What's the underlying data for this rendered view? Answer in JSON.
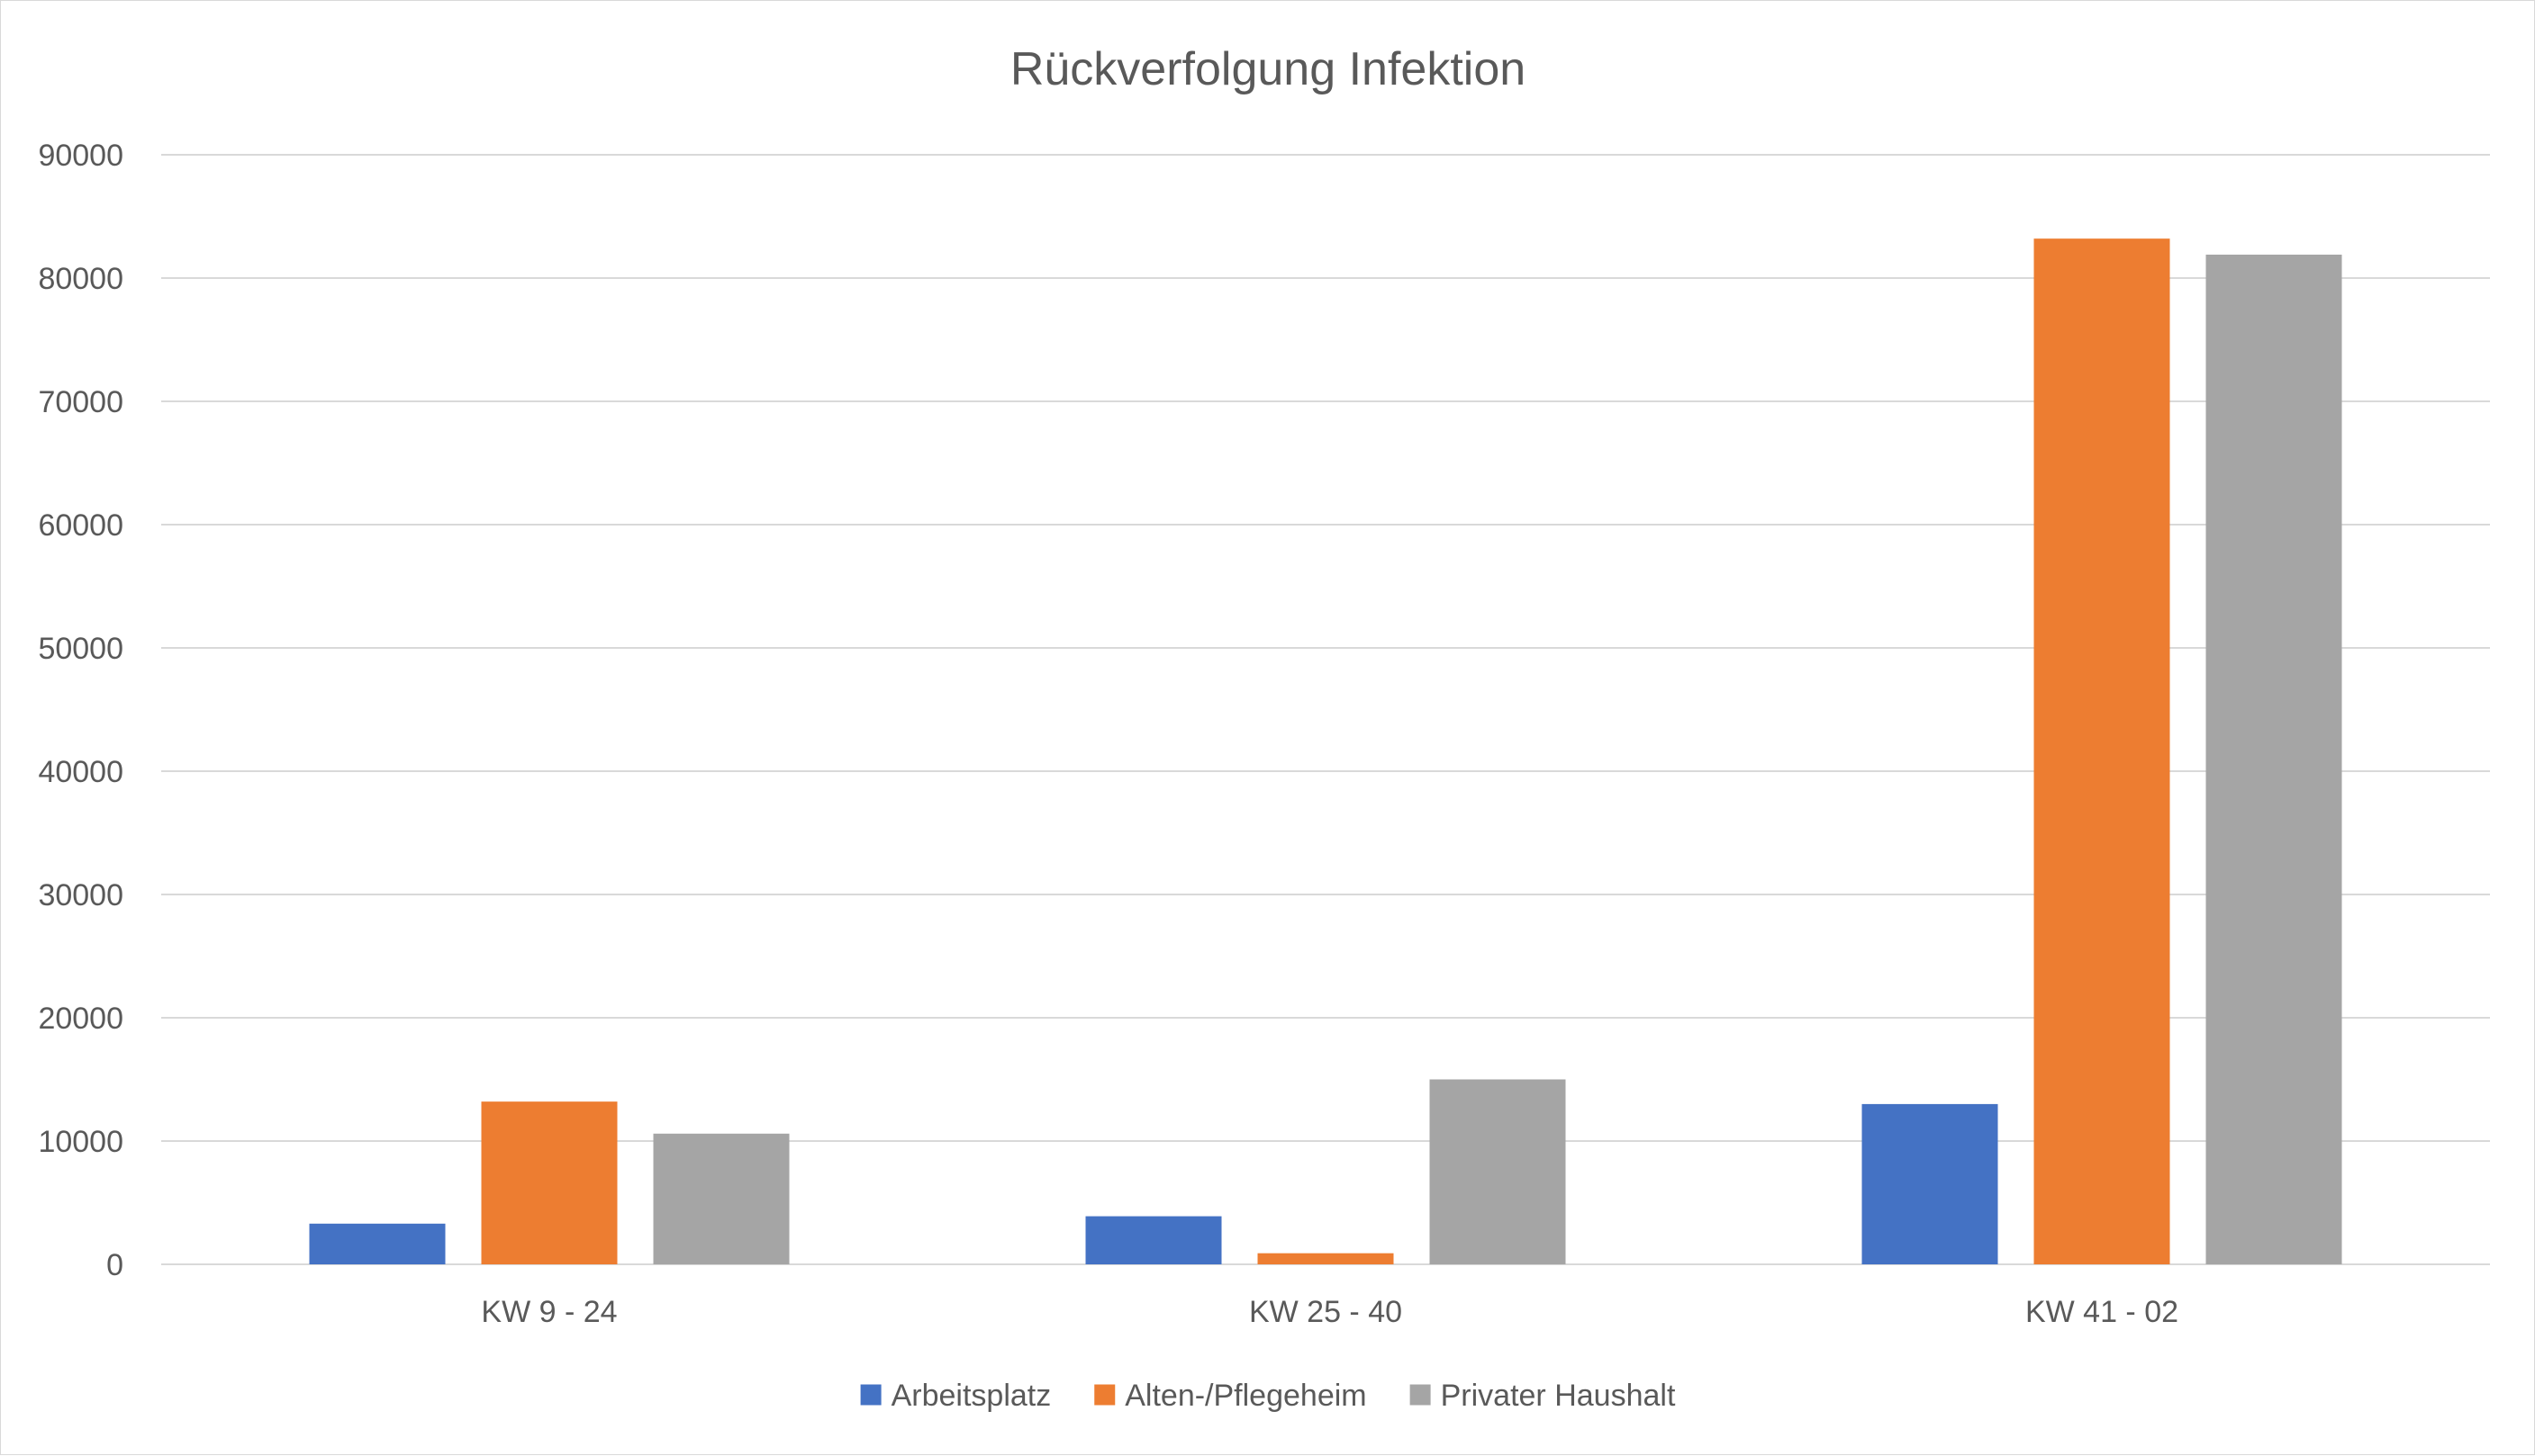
{
  "chart_data": {
    "type": "bar",
    "title": "Rückverfolgung Infektion",
    "xlabel": "",
    "ylabel": "",
    "categories": [
      "KW 9 - 24",
      "KW 25 - 40",
      "KW 41 - 02"
    ],
    "series": [
      {
        "name": "Arbeitsplatz",
        "color": "#4472c4",
        "values": [
          3300,
          3900,
          13000
        ]
      },
      {
        "name": "Alten-/Pflegeheim",
        "color": "#ed7d31",
        "values": [
          13200,
          900,
          83200
        ]
      },
      {
        "name": "Privater Haushalt",
        "color": "#a5a5a5",
        "values": [
          10600,
          15000,
          81900
        ]
      }
    ],
    "ylim": [
      0,
      90000
    ],
    "yticks": [
      0,
      10000,
      20000,
      30000,
      40000,
      50000,
      60000,
      70000,
      80000,
      90000
    ],
    "grid": true,
    "legend": "bottom-center"
  }
}
